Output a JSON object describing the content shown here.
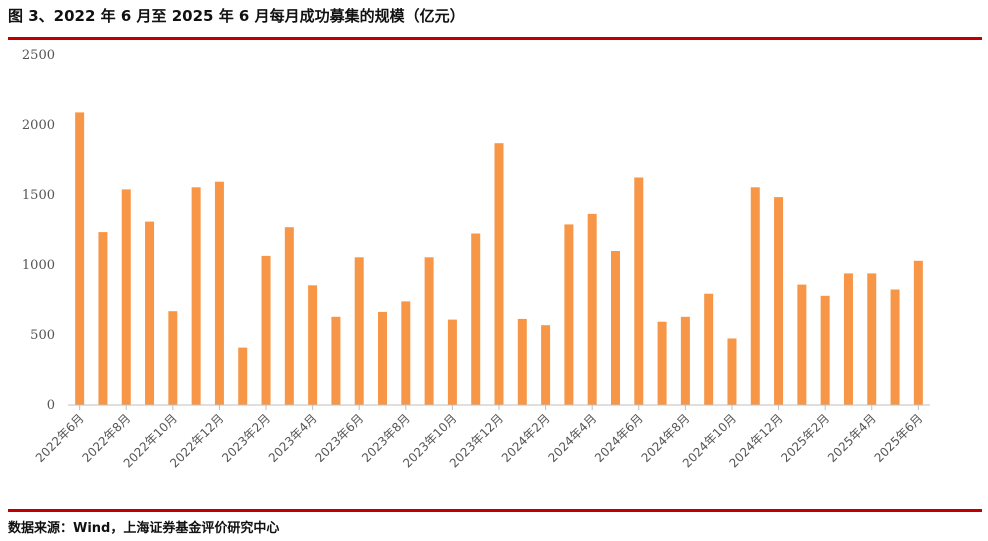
{
  "title": "图 3、2022 年 6 月至 2025 年 6 月每月成功募集的规模（亿元）",
  "source": "数据来源：Wind，上海证券基金评价研究中心",
  "colors": {
    "bar": "#f79646",
    "rule": "#c00000",
    "axis": "#bfbfbf"
  },
  "chart_data": {
    "type": "bar",
    "categories": [
      "2022年6月",
      "2022年7月",
      "2022年8月",
      "2022年9月",
      "2022年10月",
      "2022年11月",
      "2022年12月",
      "2023年1月",
      "2023年2月",
      "2023年3月",
      "2023年4月",
      "2023年5月",
      "2023年6月",
      "2023年7月",
      "2023年8月",
      "2023年9月",
      "2023年10月",
      "2023年11月",
      "2023年12月",
      "2024年1月",
      "2024年2月",
      "2024年3月",
      "2024年4月",
      "2024年5月",
      "2024年6月",
      "2024年7月",
      "2024年8月",
      "2024年9月",
      "2024年10月",
      "2024年11月",
      "2024年12月",
      "2025年1月",
      "2025年2月",
      "2025年3月",
      "2025年4月",
      "2025年5月",
      "2025年6月"
    ],
    "x_tick_labels": [
      "2022年6月",
      "2022年8月",
      "2022年10月",
      "2022年12月",
      "2023年2月",
      "2023年4月",
      "2023年6月",
      "2023年8月",
      "2023年10月",
      "2023年12月",
      "2024年2月",
      "2024年4月",
      "2024年6月",
      "2024年8月",
      "2024年10月",
      "2024年12月",
      "2025年2月",
      "2025年4月",
      "2025年6月"
    ],
    "values": [
      2090,
      1235,
      1540,
      1310,
      670,
      1555,
      1595,
      410,
      1065,
      1270,
      855,
      630,
      1055,
      665,
      740,
      1055,
      610,
      1225,
      1870,
      615,
      570,
      1290,
      1365,
      1100,
      1625,
      595,
      630,
      795,
      475,
      1555,
      1485,
      860,
      780,
      940,
      940,
      825,
      1030
    ],
    "yticks": [
      0,
      500,
      1000,
      1500,
      2000,
      2500
    ],
    "ylim": [
      0,
      2500
    ],
    "grid": false,
    "legend": "none"
  }
}
